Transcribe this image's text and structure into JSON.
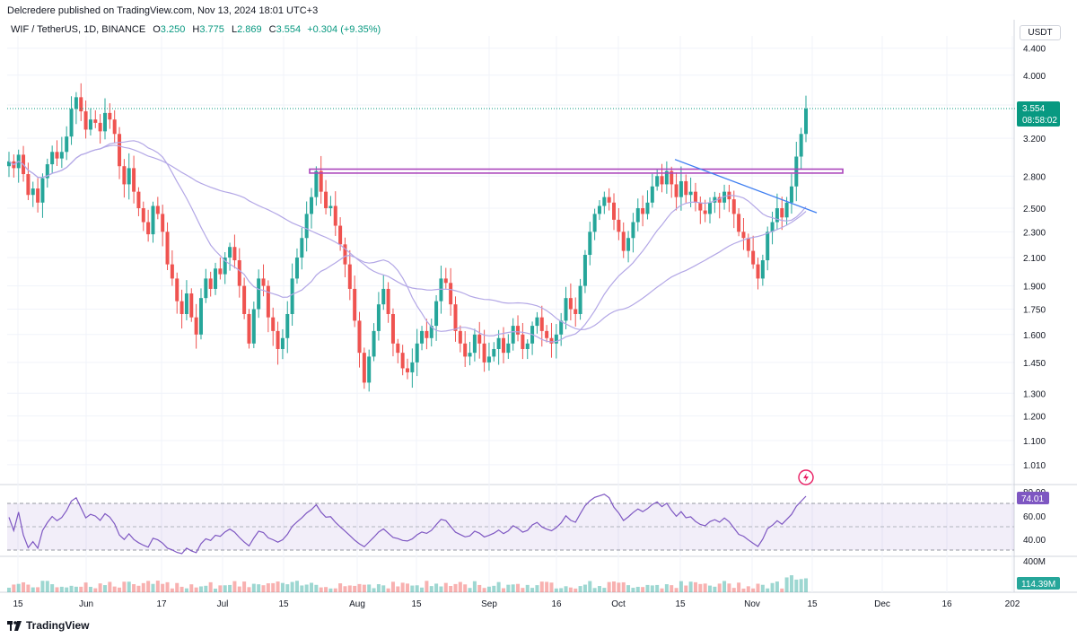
{
  "header": {
    "published_text": "Delcredere published on TradingView.com, Nov 13, 2024 18:01 UTC+3"
  },
  "legend": {
    "symbol": "WIF / TetherUS, 1D, BINANCE",
    "open_label": "O",
    "open": "3.250",
    "high_label": "H",
    "high": "3.775",
    "low_label": "L",
    "low": "2.869",
    "close_label": "C",
    "close": "3.554",
    "change": "+0.304 (+9.35%)"
  },
  "currency_button": "USDT",
  "price_tag": {
    "price": "3.554",
    "countdown": "08:58:02"
  },
  "rsi_tag": "74.01",
  "volume_tag": "114.39M",
  "footer": {
    "brand": "TradingView"
  },
  "colors": {
    "up": "#26a69a",
    "down": "#ef5350",
    "rsi_line": "#7e57c2",
    "ma_line": "#b3a7e6",
    "trendline": "#3f7ff1",
    "zone_border": "#ab47bc",
    "price_tag_bg": "#089981"
  },
  "chart_data": {
    "type": "candlestick",
    "x_ticks": [
      "15",
      "Jun",
      "17",
      "Jul",
      "15",
      "Aug",
      "15",
      "Sep",
      "16",
      "Oct",
      "15",
      "Nov",
      "15",
      "Dec",
      "16",
      "202"
    ],
    "y_ticks": [
      "4.400",
      "4.000",
      "3.600",
      "3.200",
      "2.800",
      "2.500",
      "2.300",
      "2.100",
      "1.900",
      "1.750",
      "1.600",
      "1.450",
      "1.300",
      "1.200",
      "1.100",
      "1.010"
    ],
    "y_scale": "log",
    "rsi_ticks": [
      "80.00",
      "60.00",
      "40.00"
    ],
    "volume_ticks": [
      "400M"
    ],
    "closes": [
      2.95,
      2.88,
      3.02,
      2.82,
      2.62,
      2.68,
      2.55,
      2.78,
      2.92,
      3.05,
      2.98,
      3.05,
      3.22,
      3.55,
      3.7,
      3.52,
      3.3,
      3.42,
      3.38,
      3.28,
      3.5,
      3.42,
      3.25,
      2.9,
      2.72,
      2.88,
      2.65,
      2.5,
      2.38,
      2.28,
      2.52,
      2.45,
      2.3,
      2.05,
      1.95,
      1.8,
      1.72,
      1.85,
      1.7,
      1.6,
      1.82,
      1.95,
      1.88,
      2.02,
      1.98,
      2.1,
      2.18,
      2.08,
      1.9,
      1.72,
      1.55,
      1.75,
      1.95,
      1.9,
      1.7,
      1.62,
      1.52,
      1.58,
      1.72,
      1.95,
      2.1,
      2.25,
      2.45,
      2.6,
      2.85,
      2.65,
      2.5,
      2.52,
      2.35,
      2.2,
      2.05,
      1.88,
      1.68,
      1.5,
      1.35,
      1.48,
      1.62,
      1.78,
      1.88,
      1.72,
      1.55,
      1.5,
      1.42,
      1.4,
      1.45,
      1.55,
      1.62,
      1.58,
      1.65,
      1.8,
      1.95,
      1.92,
      1.78,
      1.62,
      1.55,
      1.48,
      1.5,
      1.6,
      1.55,
      1.45,
      1.48,
      1.52,
      1.58,
      1.5,
      1.55,
      1.65,
      1.6,
      1.52,
      1.55,
      1.65,
      1.7,
      1.62,
      1.58,
      1.55,
      1.6,
      1.68,
      1.82,
      1.75,
      1.72,
      1.9,
      2.12,
      2.3,
      2.45,
      2.52,
      2.6,
      2.55,
      2.4,
      2.3,
      2.15,
      2.25,
      2.38,
      2.5,
      2.45,
      2.55,
      2.7,
      2.8,
      2.72,
      2.85,
      2.72,
      2.6,
      2.75,
      2.62,
      2.65,
      2.55,
      2.48,
      2.45,
      2.55,
      2.6,
      2.55,
      2.65,
      2.58,
      2.45,
      2.3,
      2.25,
      2.15,
      2.05,
      1.95,
      2.08,
      2.3,
      2.38,
      2.5,
      2.42,
      2.55,
      2.7,
      3.0,
      3.25,
      3.554
    ],
    "ma_overlay": "moving average",
    "horizontal_zone": [
      2.83,
      2.87
    ],
    "trendline_from": [
      2.97,
      2.46
    ]
  }
}
